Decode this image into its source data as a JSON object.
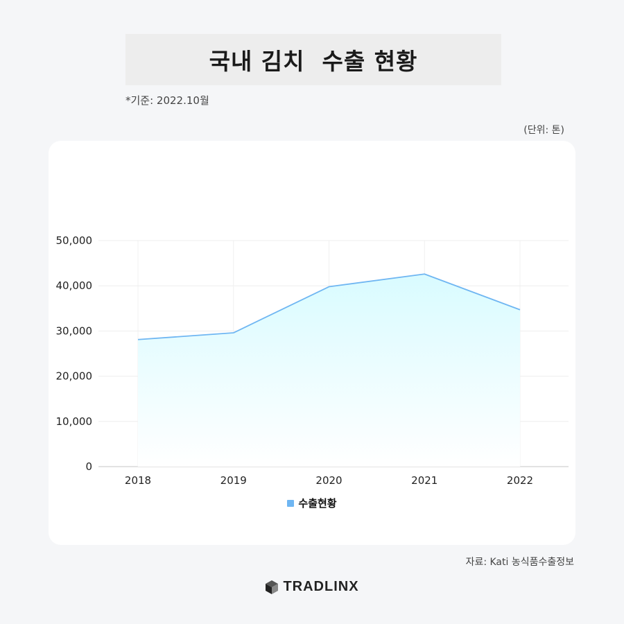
{
  "header": {
    "title": "국내 김치  수출 현황",
    "basis": "*기준: 2022.10월",
    "unit": "(단위: 톤)"
  },
  "chart_data": {
    "type": "area",
    "x": [
      "2018",
      "2019",
      "2020",
      "2021",
      "2022"
    ],
    "series": [
      {
        "name": "수출현황",
        "values": [
          28100,
          29600,
          39800,
          42600,
          34700
        ]
      }
    ],
    "yticks": [
      "0",
      "10,000",
      "20,000",
      "30,000",
      "40,000",
      "50,000"
    ],
    "ylim": [
      0,
      50000
    ],
    "grid": true,
    "legend_position": "bottom-center",
    "colors": {
      "line": "#6fb6f2",
      "fill_top": "#d9fbff",
      "fill_bottom": "#ffffff"
    }
  },
  "legend": {
    "label": "수출현황"
  },
  "footer": {
    "source": "자료: Kati 농식품수출정보",
    "brand": "TRADLINX"
  }
}
